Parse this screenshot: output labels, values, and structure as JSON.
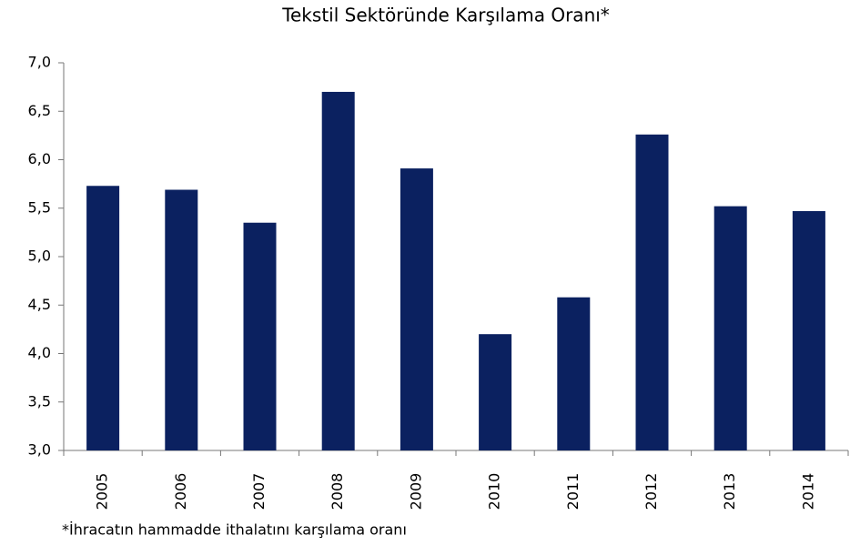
{
  "chart_data": {
    "type": "bar",
    "title": "Tekstil Sektöründe  Karşılama Oranı*",
    "footnote": "*İhracatın hammadde ithalatını karşılama oranı",
    "categories": [
      "2005",
      "2006",
      "2007",
      "2008",
      "2009",
      "2010",
      "2011",
      "2012",
      "2013",
      "2014"
    ],
    "values": [
      5.73,
      5.69,
      5.35,
      6.7,
      5.91,
      4.2,
      4.58,
      6.26,
      5.52,
      5.47
    ],
    "color": "#0b2160",
    "ylim": [
      3,
      7
    ],
    "yticks": [
      {
        "value": 3,
        "label": "3,0"
      },
      {
        "value": 3.5,
        "label": "3,5"
      },
      {
        "value": 4,
        "label": "4,0"
      },
      {
        "value": 4.5,
        "label": "4,5"
      },
      {
        "value": 5,
        "label": "5,0"
      },
      {
        "value": 5.5,
        "label": "5,5"
      },
      {
        "value": 6,
        "label": "6,0"
      },
      {
        "value": 6.5,
        "label": "6,5"
      },
      {
        "value": 7,
        "label": "7,0"
      }
    ],
    "grid": false
  }
}
